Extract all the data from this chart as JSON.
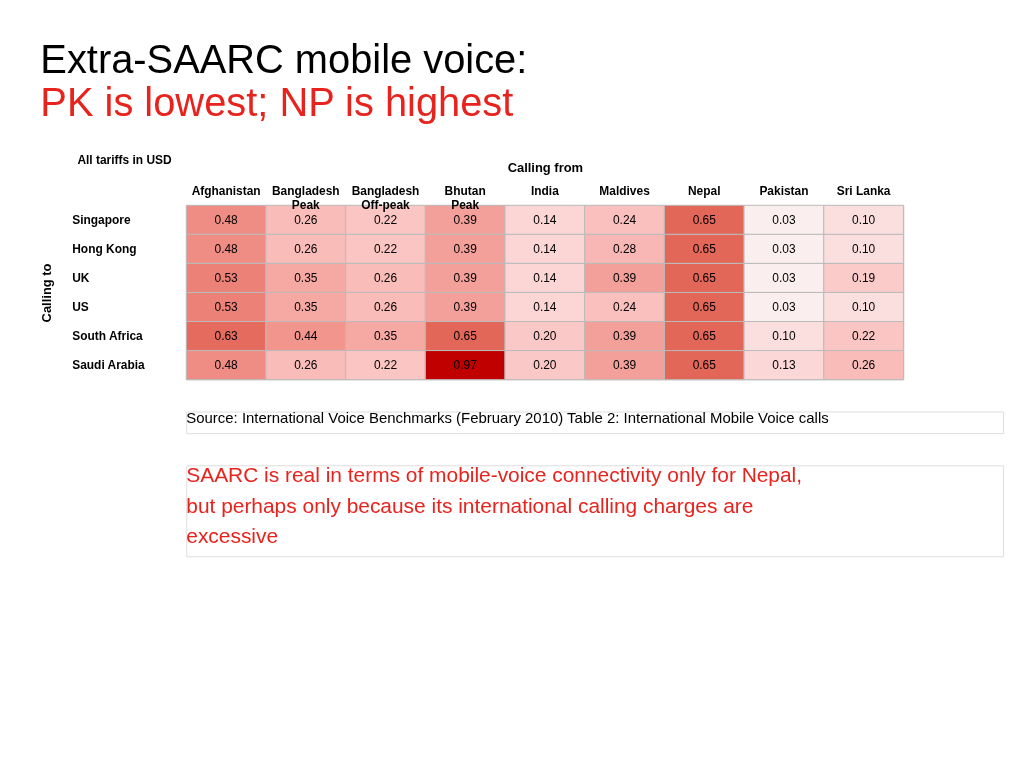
{
  "chart_data": {
    "type": "heatmap",
    "title": "Extra-SAARC mobile voice:",
    "subtitle": "PK is lowest; NP is highest",
    "xlabel": "Calling from",
    "ylabel": "Calling to",
    "categories": [
      "Afghanistan",
      "Bangladesh\nPeak",
      "Bangladesh\nOff-peak",
      "Bhutan\nPeak",
      "India",
      "Maldives",
      "Nepal",
      "Pakistan",
      "Sri Lanka"
    ],
    "y_categories": [
      "Singapore",
      "Hong Kong",
      "UK",
      "US",
      "South Africa",
      "Saudi Arabia"
    ],
    "cells": [
      [
        0.48,
        0.26,
        0.22,
        0.39,
        0.14,
        0.24,
        0.65,
        0.03,
        0.1
      ],
      [
        0.48,
        0.26,
        0.22,
        0.39,
        0.14,
        0.28,
        0.65,
        0.03,
        0.1
      ],
      [
        0.53,
        0.35,
        0.26,
        0.39,
        0.14,
        0.39,
        0.65,
        0.03,
        0.19
      ],
      [
        0.53,
        0.35,
        0.26,
        0.39,
        0.14,
        0.24,
        0.65,
        0.03,
        0.1
      ],
      [
        0.63,
        0.44,
        0.35,
        0.65,
        0.2,
        0.39,
        0.65,
        0.1,
        0.22
      ],
      [
        0.48,
        0.26,
        0.22,
        0.97,
        0.2,
        0.39,
        0.65,
        0.13,
        0.26
      ]
    ],
    "cell_labels": [
      [
        "0.48",
        "0.26",
        "0.22",
        "0.39",
        "0.14",
        "0.24",
        "0.65",
        "0.03",
        "0.10"
      ],
      [
        "0.48",
        "0.26",
        "0.22",
        "0.39",
        "0.14",
        "0.28",
        "0.65",
        "0.03",
        "0.10"
      ],
      [
        "0.53",
        "0.35",
        "0.26",
        "0.39",
        "0.14",
        "0.39",
        "0.65",
        "0.03",
        "0.19"
      ],
      [
        "0.53",
        "0.35",
        "0.26",
        "0.39",
        "0.14",
        "0.24",
        "0.65",
        "0.03",
        "0.10"
      ],
      [
        "0.63",
        "0.44",
        "0.35",
        "0.65",
        "0.20",
        "0.39",
        "0.65",
        "0.10",
        "0.22"
      ],
      [
        "0.48",
        "0.26",
        "0.22",
        "0.97",
        "0.20",
        "0.39",
        "0.65",
        "0.13",
        "0.26"
      ]
    ],
    "annotations": [
      "All tariffs in USD",
      "Source: International Voice Benchmarks (February 2010) Table 2: International Mobile Voice calls",
      "SAARC is real in terms of mobile-voice connectivity only for Nepal, but perhaps only because its international calling charges are excessive"
    ]
  }
}
